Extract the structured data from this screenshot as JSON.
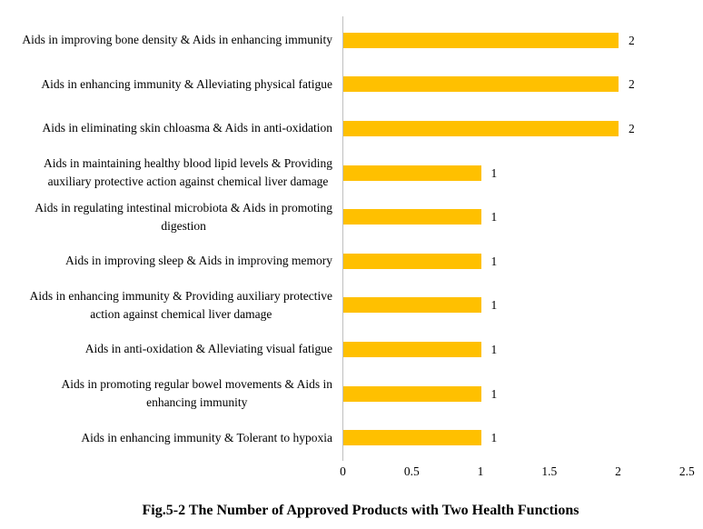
{
  "chart_data": {
    "type": "bar",
    "orientation": "horizontal",
    "title": "Fig.5-2 The Number of Approved Products with Two Health Functions",
    "categories": [
      "Aids in improving bone density & Aids in enhancing immunity",
      "Aids in enhancing immunity & Alleviating physical fatigue",
      "Aids in eliminating skin chloasma & Aids in anti-oxidation",
      "Aids in maintaining healthy blood lipid levels & Providing\nauxiliary protective action against chemical liver damage",
      "Aids in regulating intestinal microbiota & Aids in promoting\ndigestion",
      "Aids in improving sleep & Aids in improving memory",
      "Aids in enhancing immunity & Providing auxiliary protective\naction against chemical liver damage",
      "Aids in anti-oxidation & Alleviating visual fatigue",
      "Aids in promoting regular bowel movements & Aids in\nenhancing immunity",
      "Aids in enhancing immunity & Tolerant to hypoxia"
    ],
    "values": [
      2,
      2,
      2,
      1,
      1,
      1,
      1,
      1,
      1,
      1
    ],
    "data_labels": [
      "2",
      "2",
      "2",
      "1",
      "1",
      "1",
      "1",
      "1",
      "1",
      "1"
    ],
    "x_ticks": [
      "0",
      "0.5",
      "1",
      "1.5",
      "2",
      "2.5"
    ],
    "xlim": [
      0,
      2.5
    ],
    "grid": "off",
    "legend": "none",
    "bar_color": "#FFC000",
    "axis_color": "#BFBFBF",
    "text_color": "#000000"
  }
}
